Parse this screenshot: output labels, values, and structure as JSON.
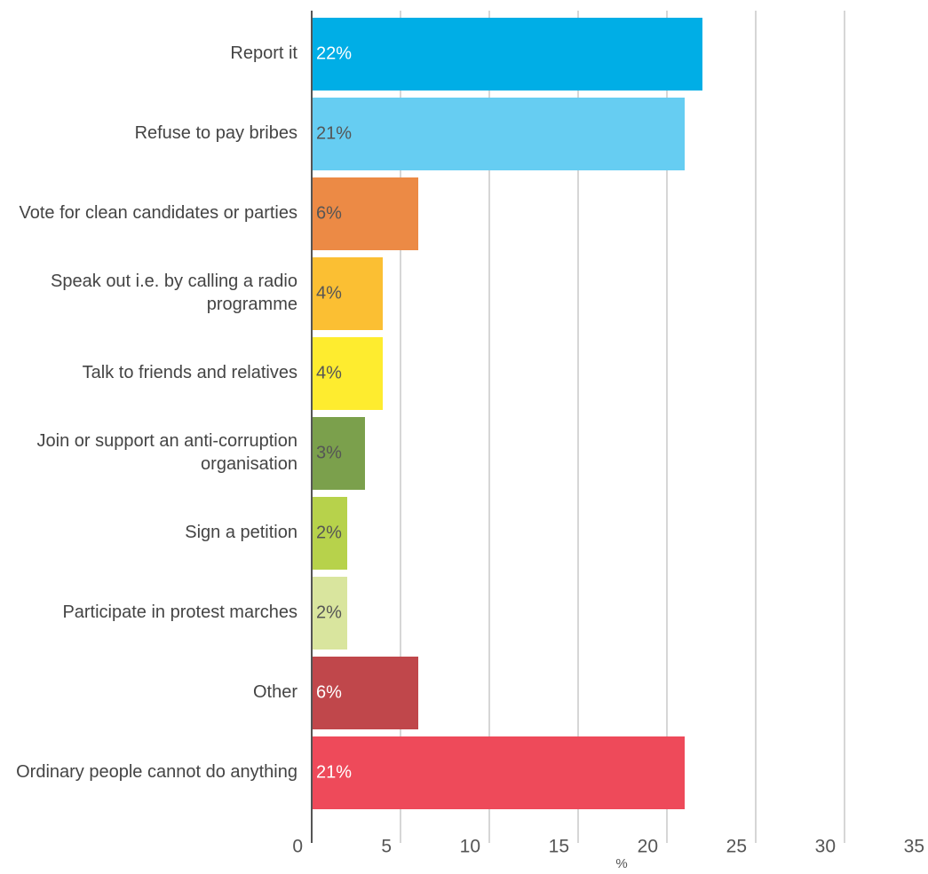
{
  "chart_data": {
    "type": "bar",
    "orientation": "horizontal",
    "categories": [
      "Report it",
      "Refuse to pay bribes",
      "Vote for clean candidates or parties",
      "Speak out i.e. by calling a radio programme",
      "Talk to friends and relatives",
      "Join or support an anti-corruption organisation",
      "Sign a petition",
      "Participate in protest marches",
      "Other",
      "Ordinary people cannot do anything"
    ],
    "category_lines": [
      [
        "Report it"
      ],
      [
        "Refuse to pay bribes"
      ],
      [
        "Vote for clean candidates or parties"
      ],
      [
        "Speak out i.e. by calling a radio",
        "programme"
      ],
      [
        "Talk to friends and relatives"
      ],
      [
        "Join or support an anti-corruption",
        "organisation"
      ],
      [
        "Sign a petition"
      ],
      [
        "Participate in protest marches"
      ],
      [
        "Other"
      ],
      [
        "Ordinary people cannot do anything"
      ]
    ],
    "values": [
      22,
      21,
      6,
      4,
      4,
      3,
      2,
      2,
      6,
      21
    ],
    "value_labels": [
      "22%",
      "21%",
      "6%",
      "4%",
      "4%",
      "3%",
      "2%",
      "2%",
      "6%",
      "21%"
    ],
    "colors": [
      "#00aee6",
      "#66cdf2",
      "#ec8a45",
      "#fbbf33",
      "#feec2f",
      "#7ba04c",
      "#b7d24b",
      "#d9e59e",
      "#c0474b",
      "#ee4a5a"
    ],
    "label_colors": [
      "#ffffff",
      "#555555",
      "#555555",
      "#555555",
      "#555555",
      "#555555",
      "#555555",
      "#555555",
      "#ffffff",
      "#ffffff"
    ],
    "xlabel": "%",
    "xlim": [
      0,
      35
    ],
    "xticks": [
      0,
      5,
      10,
      15,
      20,
      25,
      30,
      35
    ],
    "grid": true
  }
}
